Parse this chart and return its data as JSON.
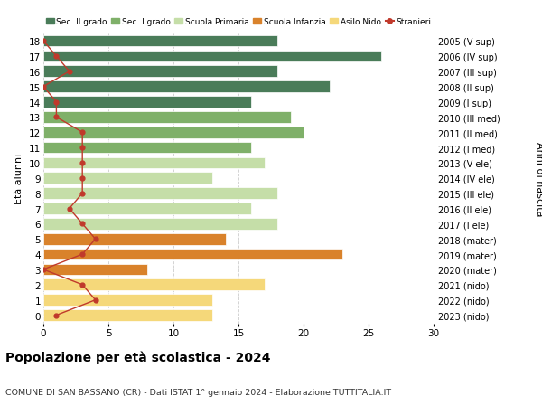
{
  "ages": [
    18,
    17,
    16,
    15,
    14,
    13,
    12,
    11,
    10,
    9,
    8,
    7,
    6,
    5,
    4,
    3,
    2,
    1,
    0
  ],
  "right_labels": [
    "2005 (V sup)",
    "2006 (IV sup)",
    "2007 (III sup)",
    "2008 (II sup)",
    "2009 (I sup)",
    "2010 (III med)",
    "2011 (II med)",
    "2012 (I med)",
    "2013 (V ele)",
    "2014 (IV ele)",
    "2015 (III ele)",
    "2016 (II ele)",
    "2017 (I ele)",
    "2018 (mater)",
    "2019 (mater)",
    "2020 (mater)",
    "2021 (nido)",
    "2022 (nido)",
    "2023 (nido)"
  ],
  "bar_values": [
    18,
    26,
    18,
    22,
    16,
    19,
    20,
    16,
    17,
    13,
    18,
    16,
    18,
    14,
    23,
    8,
    17,
    13,
    13
  ],
  "bar_colors": [
    "#4a7c59",
    "#4a7c59",
    "#4a7c59",
    "#4a7c59",
    "#4a7c59",
    "#7fb069",
    "#7fb069",
    "#7fb069",
    "#c5dea8",
    "#c5dea8",
    "#c5dea8",
    "#c5dea8",
    "#c5dea8",
    "#d9822b",
    "#d9822b",
    "#d9822b",
    "#f5d87a",
    "#f5d87a",
    "#f5d87a"
  ],
  "stranieri_values": [
    0,
    1,
    2,
    0,
    1,
    1,
    3,
    3,
    3,
    3,
    3,
    2,
    3,
    4,
    3,
    0,
    3,
    4,
    1
  ],
  "legend_labels": [
    "Sec. II grado",
    "Sec. I grado",
    "Scuola Primaria",
    "Scuola Infanzia",
    "Asilo Nido",
    "Stranieri"
  ],
  "legend_colors": [
    "#4a7c59",
    "#7fb069",
    "#c5dea8",
    "#d9822b",
    "#f5d87a",
    "#c0392b"
  ],
  "ylabel": "Età alunni",
  "right_ylabel": "Anni di nascita",
  "title": "Popolazione per età scolastica - 2024",
  "subtitle": "COMUNE DI SAN BASSANO (CR) - Dati ISTAT 1° gennaio 2024 - Elaborazione TUTTITALIA.IT",
  "xlim": [
    0,
    30
  ],
  "xticks": [
    0,
    5,
    10,
    15,
    20,
    25,
    30
  ],
  "background_color": "#ffffff",
  "stranieri_color": "#c0392b",
  "bar_height": 0.75
}
